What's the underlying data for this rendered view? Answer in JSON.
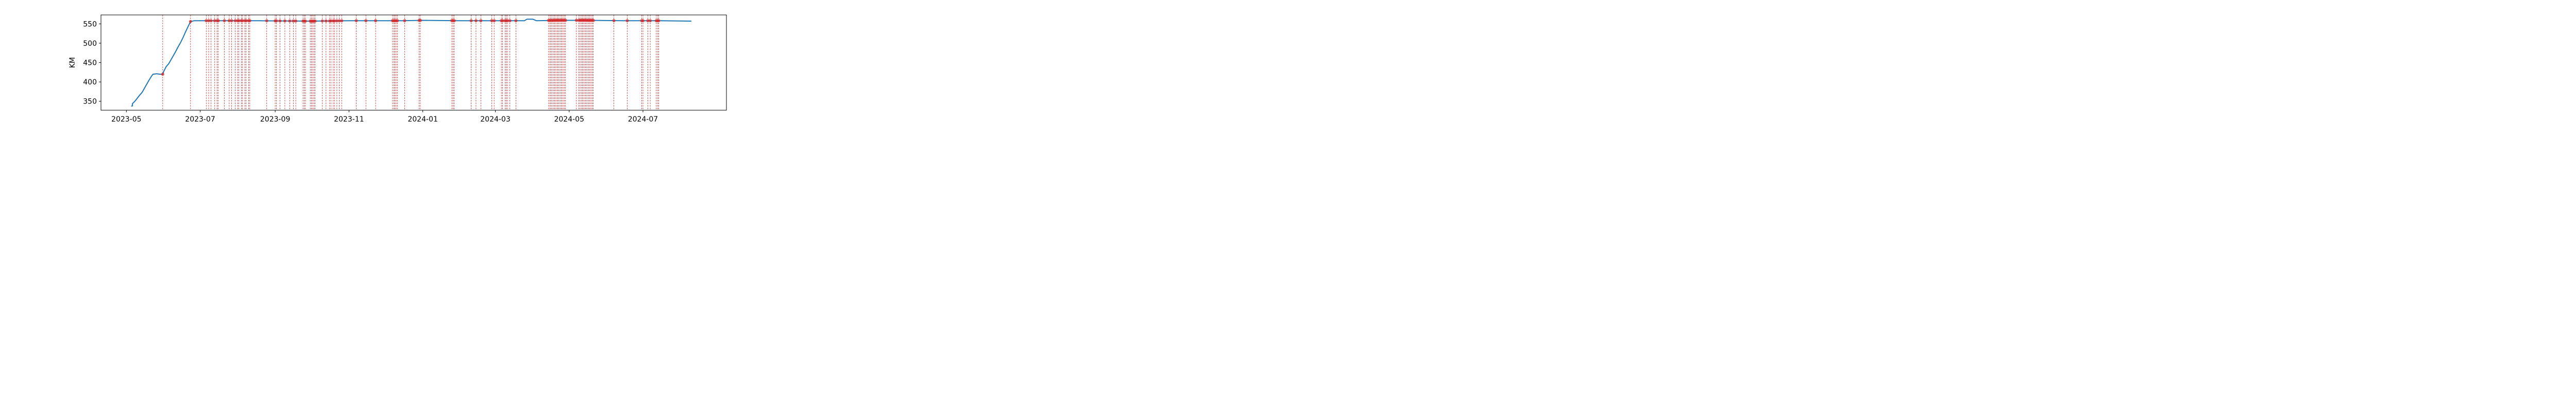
{
  "chart_data": {
    "type": "line",
    "title": "",
    "xlabel": "",
    "ylabel": "KM",
    "x_axis_type": "date",
    "xlim": [
      "2023-04-10",
      "2024-09-08"
    ],
    "ylim": [
      327,
      573
    ],
    "x_ticks": [
      "2023-05",
      "2023-07",
      "2023-09",
      "2023-11",
      "2024-01",
      "2024-03",
      "2024-05",
      "2024-07"
    ],
    "x_tick_dates": [
      "2023-05-01",
      "2023-07-01",
      "2023-09-01",
      "2023-11-01",
      "2024-01-01",
      "2024-03-01",
      "2024-05-01",
      "2024-07-01"
    ],
    "y_ticks": [
      350,
      400,
      450,
      500,
      550
    ],
    "grid": false,
    "legend": "none",
    "series": [
      {
        "color": "#1f77b4",
        "points": [
          [
            "2023-05-05",
            338
          ],
          [
            "2023-05-06",
            338
          ],
          [
            "2023-05-06",
            344
          ],
          [
            "2023-05-08",
            350
          ],
          [
            "2023-05-10",
            358
          ],
          [
            "2023-05-12",
            366
          ],
          [
            "2023-05-14",
            373
          ],
          [
            "2023-05-16",
            384
          ],
          [
            "2023-05-18",
            395
          ],
          [
            "2023-05-20",
            406
          ],
          [
            "2023-05-22",
            416
          ],
          [
            "2023-05-23",
            420
          ],
          [
            "2023-05-26",
            421
          ],
          [
            "2023-05-29",
            420
          ],
          [
            "2023-05-31",
            420
          ],
          [
            "2023-06-01",
            428
          ],
          [
            "2023-06-03",
            440
          ],
          [
            "2023-06-05",
            447
          ],
          [
            "2023-06-07",
            458
          ],
          [
            "2023-06-09",
            469
          ],
          [
            "2023-06-11",
            480
          ],
          [
            "2023-06-13",
            492
          ],
          [
            "2023-06-15",
            503
          ],
          [
            "2023-06-17",
            516
          ],
          [
            "2023-06-19",
            530
          ],
          [
            "2023-06-21",
            543
          ],
          [
            "2023-06-23",
            556
          ],
          [
            "2023-06-26",
            558
          ],
          [
            "2023-07-15",
            558
          ],
          [
            "2023-08-20",
            558
          ],
          [
            "2023-09-30",
            557
          ],
          [
            "2023-11-01",
            558
          ],
          [
            "2023-12-15",
            558
          ],
          [
            "2024-01-01",
            559
          ],
          [
            "2024-02-01",
            558
          ],
          [
            "2024-03-15",
            558
          ],
          [
            "2024-03-25",
            558
          ],
          [
            "2024-03-27",
            562
          ],
          [
            "2024-04-01",
            562
          ],
          [
            "2024-04-04",
            558
          ],
          [
            "2024-04-20",
            559
          ],
          [
            "2024-05-15",
            559
          ],
          [
            "2024-06-15",
            558
          ],
          [
            "2024-07-15",
            558
          ],
          [
            "2024-08-10",
            557
          ]
        ]
      }
    ],
    "event_markers": {
      "color": "#d62728",
      "dates": [
        "2023-05-31",
        "2023-06-23",
        "2023-07-06",
        "2023-07-08",
        "2023-07-10",
        "2023-07-13",
        "2023-07-15",
        "2023-07-16",
        "2023-07-21",
        "2023-07-25",
        "2023-07-27",
        "2023-07-30",
        "2023-08-01",
        "2023-08-02",
        "2023-08-04",
        "2023-08-05",
        "2023-08-07",
        "2023-08-08",
        "2023-08-10",
        "2023-08-11",
        "2023-08-25",
        "2023-09-01",
        "2023-09-02",
        "2023-09-05",
        "2023-09-09",
        "2023-09-13",
        "2023-09-16",
        "2023-09-18",
        "2023-09-24",
        "2023-09-25",
        "2023-09-26",
        "2023-09-30",
        "2023-10-01",
        "2023-10-02",
        "2023-10-03",
        "2023-10-04",
        "2023-10-10",
        "2023-10-13",
        "2023-10-16",
        "2023-10-17",
        "2023-10-19",
        "2023-10-20",
        "2023-10-22",
        "2023-10-24",
        "2023-10-26",
        "2023-11-07",
        "2023-11-15",
        "2023-11-23",
        "2023-12-07",
        "2023-12-08",
        "2023-12-09",
        "2023-12-10",
        "2023-12-11",
        "2023-12-17",
        "2023-12-29",
        "2023-12-30",
        "2024-01-25",
        "2024-01-26",
        "2024-01-27",
        "2024-02-10",
        "2024-02-14",
        "2024-02-18",
        "2024-02-27",
        "2024-02-29",
        "2024-03-06",
        "2024-03-07",
        "2024-03-09",
        "2024-03-10",
        "2024-03-11",
        "2024-03-13",
        "2024-03-18",
        "2024-04-14",
        "2024-04-15",
        "2024-04-16",
        "2024-04-17",
        "2024-04-18",
        "2024-04-19",
        "2024-04-20",
        "2024-04-21",
        "2024-04-22",
        "2024-04-23",
        "2024-04-24",
        "2024-04-25",
        "2024-04-26",
        "2024-04-27",
        "2024-04-28",
        "2024-05-07",
        "2024-05-09",
        "2024-05-10",
        "2024-05-11",
        "2024-05-12",
        "2024-05-13",
        "2024-05-14",
        "2024-05-15",
        "2024-05-16",
        "2024-05-17",
        "2024-05-18",
        "2024-05-19",
        "2024-05-20",
        "2024-05-21",
        "2024-06-07",
        "2024-06-18",
        "2024-06-30",
        "2024-07-01",
        "2024-07-05",
        "2024-07-07",
        "2024-07-12",
        "2024-07-13",
        "2024-07-14"
      ]
    }
  }
}
